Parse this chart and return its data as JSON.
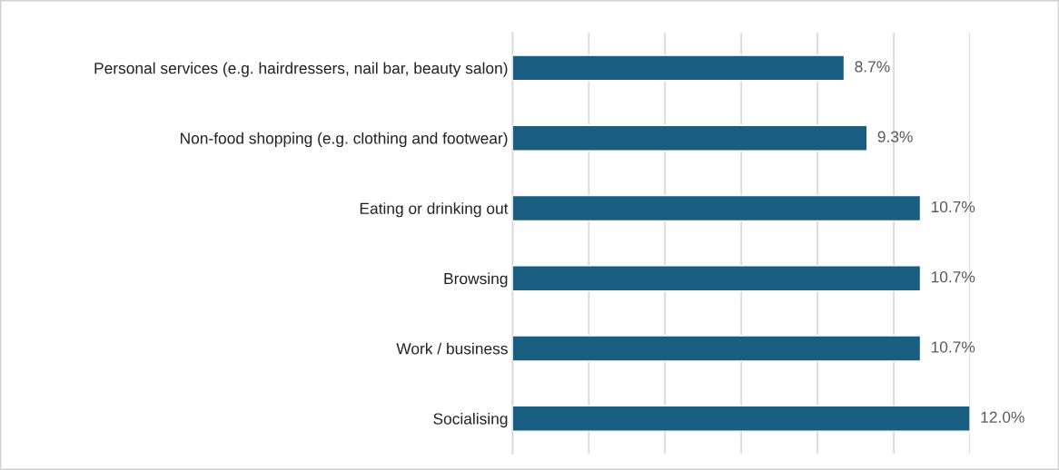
{
  "chart_data": {
    "type": "bar",
    "orientation": "horizontal",
    "categories": [
      "Personal services (e.g. hairdressers, nail bar, beauty salon)",
      "Non-food shopping (e.g. clothing and footwear)",
      "Eating or drinking out",
      "Browsing",
      "Work / business",
      "Socialising"
    ],
    "values": [
      8.7,
      9.3,
      10.7,
      10.7,
      10.7,
      12.0
    ],
    "value_labels": [
      "8.7%",
      "9.3%",
      "10.7%",
      "10.7%",
      "10.7%",
      "12.0%"
    ],
    "color": "#195e80",
    "xlim": [
      0,
      12
    ],
    "xticks": [
      {
        "value": 0,
        "label": null
      },
      {
        "value": 2,
        "label": null
      },
      {
        "value": 4,
        "label": null
      },
      {
        "value": 6,
        "label": null
      },
      {
        "value": 8,
        "label": null
      },
      {
        "value": 10,
        "label": null
      },
      {
        "value": 12,
        "label": null
      }
    ],
    "grid": "x",
    "tick_labels": "y",
    "legend": false
  }
}
